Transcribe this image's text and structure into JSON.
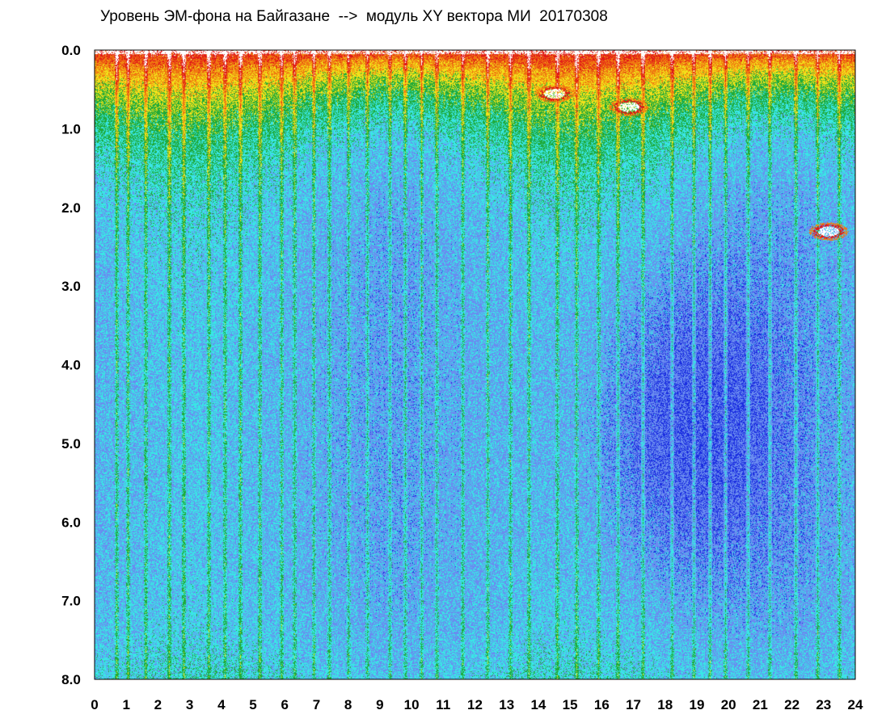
{
  "chart_data": {
    "type": "heatmap",
    "title": "Уровень ЭМ-фона на Байгазане  -->  модуль XY вектора МИ  20170308",
    "xlabel": "",
    "ylabel": "",
    "x_ticks": [
      "0",
      "1",
      "2",
      "3",
      "4",
      "5",
      "6",
      "7",
      "8",
      "9",
      "10",
      "11",
      "12",
      "13",
      "14",
      "15",
      "16",
      "17",
      "18",
      "19",
      "20",
      "21",
      "22",
      "23",
      "24"
    ],
    "y_ticks": [
      "0.0",
      "1.0",
      "2.0",
      "3.0",
      "4.0",
      "5.0",
      "6.0",
      "7.0",
      "8.0"
    ],
    "xlim": [
      0,
      24
    ],
    "ylim": [
      0,
      8
    ],
    "y_inverted": true,
    "grid": false,
    "colorscale": [
      "#1a2ee0",
      "#6a8cf0",
      "#39e6e6",
      "#1faa3a",
      "#f2e21a",
      "#f07a10",
      "#e01818",
      "#ffffff"
    ],
    "vertical_streaks_hours": [
      0.7,
      1.05,
      1.6,
      2.35,
      2.8,
      3.6,
      4.1,
      4.6,
      5.2,
      5.9,
      6.3,
      6.9,
      7.4,
      8.0,
      8.6,
      9.3,
      9.8,
      10.3,
      10.8,
      11.6,
      12.4,
      13.1,
      13.7,
      14.6,
      15.2,
      15.9,
      16.5,
      17.3,
      18.2,
      18.9,
      19.4,
      19.9,
      20.6,
      21.3,
      22.1,
      22.8,
      23.5
    ],
    "hotspots": [
      {
        "x": 14.5,
        "y": 0.55,
        "level": 7
      },
      {
        "x": 16.85,
        "y": 0.72,
        "level": 7
      },
      {
        "x": 23.15,
        "y": 2.3,
        "level": 6
      }
    ]
  }
}
